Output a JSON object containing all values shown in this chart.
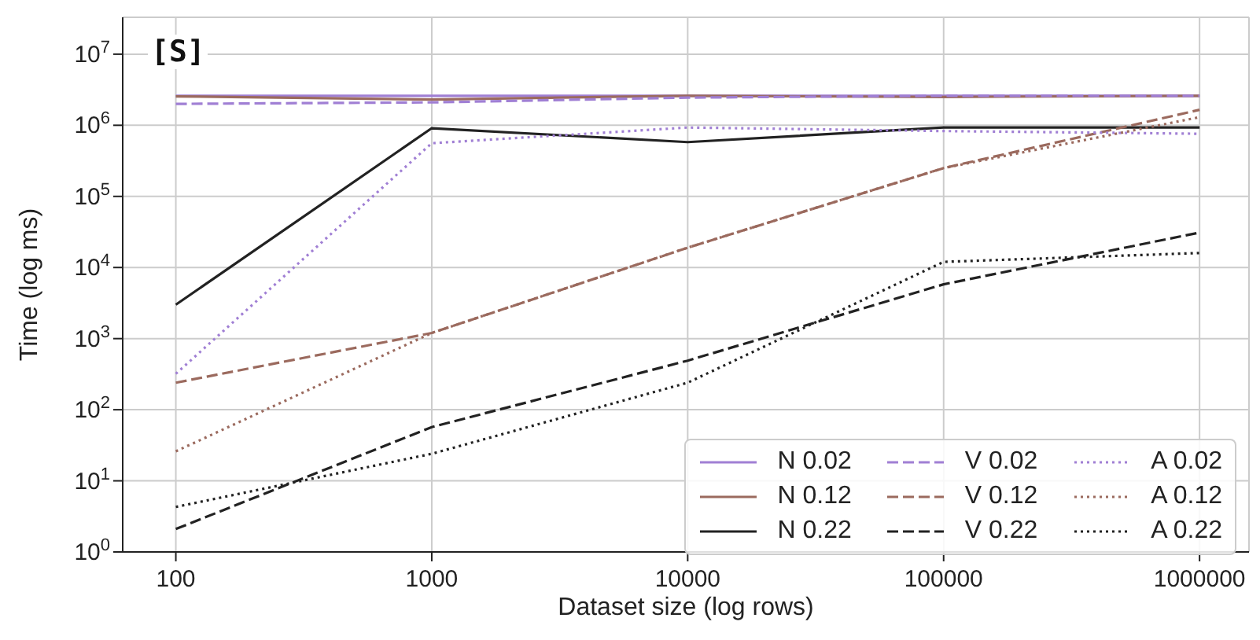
{
  "chart_data": {
    "type": "line",
    "xlabel": "Dataset size (log rows)",
    "ylabel": "Time (log ms)",
    "annotations": [
      "[S]"
    ],
    "x": [
      100,
      1000,
      10000,
      100000,
      1000000
    ],
    "xlim": [
      62,
      1560000
    ],
    "xticks": [
      100,
      1000,
      10000,
      100000,
      1000000
    ],
    "ylim": [
      1,
      33000000
    ],
    "yticks": [
      {
        "value": 1,
        "label": "10$^{0}$"
      },
      {
        "value": 10,
        "label": "10$^{1}$"
      },
      {
        "value": 100,
        "label": "10$^{2}$"
      },
      {
        "value": 1000,
        "label": "10$^{3}$"
      },
      {
        "value": 10000,
        "label": "10$^{4}$"
      },
      {
        "value": 100000,
        "label": "10$^{5}$"
      },
      {
        "value": 1000000,
        "label": "10$^{6}$"
      },
      {
        "value": 10000000,
        "label": "10$^{7}$"
      }
    ],
    "log": "xy",
    "grid": true,
    "legend": "bottom right",
    "marker": "none",
    "series": [
      {
        "name": "N 0.02",
        "color": "#a07fd4",
        "line_style": "solid",
        "values": [
          2600000,
          2600000,
          2600000,
          2600000,
          2600000
        ]
      },
      {
        "name": "N 0.12",
        "color": "#9b6a5e",
        "line_style": "solid",
        "values": [
          2550000,
          2300000,
          2600000,
          2500000,
          2600000
        ]
      },
      {
        "name": "N 0.22",
        "color": "#222222",
        "line_style": "solid",
        "values": [
          3000,
          910000,
          580000,
          930000,
          930000
        ]
      },
      {
        "name": "V 0.02",
        "color": "#a07fd4",
        "line_style": "dashed",
        "values": [
          2000000,
          2100000,
          2450000,
          2600000,
          2600000
        ]
      },
      {
        "name": "V 0.12",
        "color": "#9b6a5e",
        "line_style": "dashed",
        "values": [
          240,
          1200,
          19000,
          250000,
          1650000
        ]
      },
      {
        "name": "V 0.22",
        "color": "#222222",
        "line_style": "dashed",
        "values": [
          2.1,
          57,
          490,
          5800,
          31000
        ]
      },
      {
        "name": "A 0.02",
        "color": "#a07fd4",
        "line_style": "dotted",
        "values": [
          320,
          560000,
          930000,
          830000,
          760000
        ]
      },
      {
        "name": "A 0.12",
        "color": "#9b6a5e",
        "line_style": "dotted",
        "values": [
          26,
          1200,
          19000,
          250000,
          1300000
        ]
      },
      {
        "name": "A 0.22",
        "color": "#222222",
        "line_style": "dotted",
        "values": [
          4.3,
          24,
          240,
          12000,
          16000
        ]
      }
    ]
  }
}
